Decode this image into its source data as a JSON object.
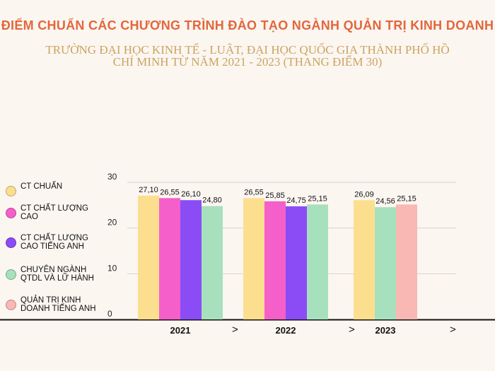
{
  "title": "ĐIỂM CHUẨN CÁC CHƯƠNG TRÌNH ĐÀO TẠO NGÀNH QUẢN TRỊ KINH DOANH",
  "subtitle": "TRƯỜNG ĐẠI HỌC KINH TẾ - LUẬT, ĐẠI HỌC QUỐC GIA THÀNH PHỐ HỒ CHÍ MINH TỪ NĂM 2021 - 2023 (THANG ĐIỂM 30)",
  "nav_arrow": ">",
  "colors": {
    "title": "#e2673c",
    "subtitle": "#c9a45f",
    "grid": "#d9d3cc",
    "axis": "#111111"
  },
  "chart_data": {
    "type": "bar",
    "categories": [
      "2021",
      "2022",
      "2023"
    ],
    "ylim": [
      0,
      30
    ],
    "yticks": [
      0,
      10,
      20,
      30
    ],
    "grid": true,
    "legend_position": "left",
    "series": [
      {
        "name": "CT CHUẨN",
        "color": "#fcdf8e",
        "values": [
          27.1,
          26.55,
          26.09
        ],
        "labels": [
          "27,10",
          "26,55",
          "26,09"
        ]
      },
      {
        "name": "CT CHẤT LƯỢNG CAO",
        "color": "#f55fc9",
        "values": [
          26.55,
          25.85,
          null
        ],
        "labels": [
          "26,55",
          "25,85",
          null
        ]
      },
      {
        "name": "CT CHẤT LƯỢNG CAO TIẾNG ANH",
        "color": "#8b4cf6",
        "values": [
          26.1,
          24.75,
          null
        ],
        "labels": [
          "26,10",
          "24,75",
          null
        ]
      },
      {
        "name": "CHUYÊN NGÀNH QTDL VÀ LỮ HÀNH",
        "color": "#a7e0bd",
        "values": [
          24.8,
          25.15,
          24.56
        ],
        "labels": [
          "24,80",
          "25,15",
          "24,56"
        ]
      },
      {
        "name": "QUẢN TRỊ KINH DOANH TIẾNG ANH",
        "color": "#f9b8b3",
        "values": [
          null,
          null,
          25.15
        ],
        "labels": [
          null,
          null,
          "25,15"
        ]
      }
    ]
  }
}
